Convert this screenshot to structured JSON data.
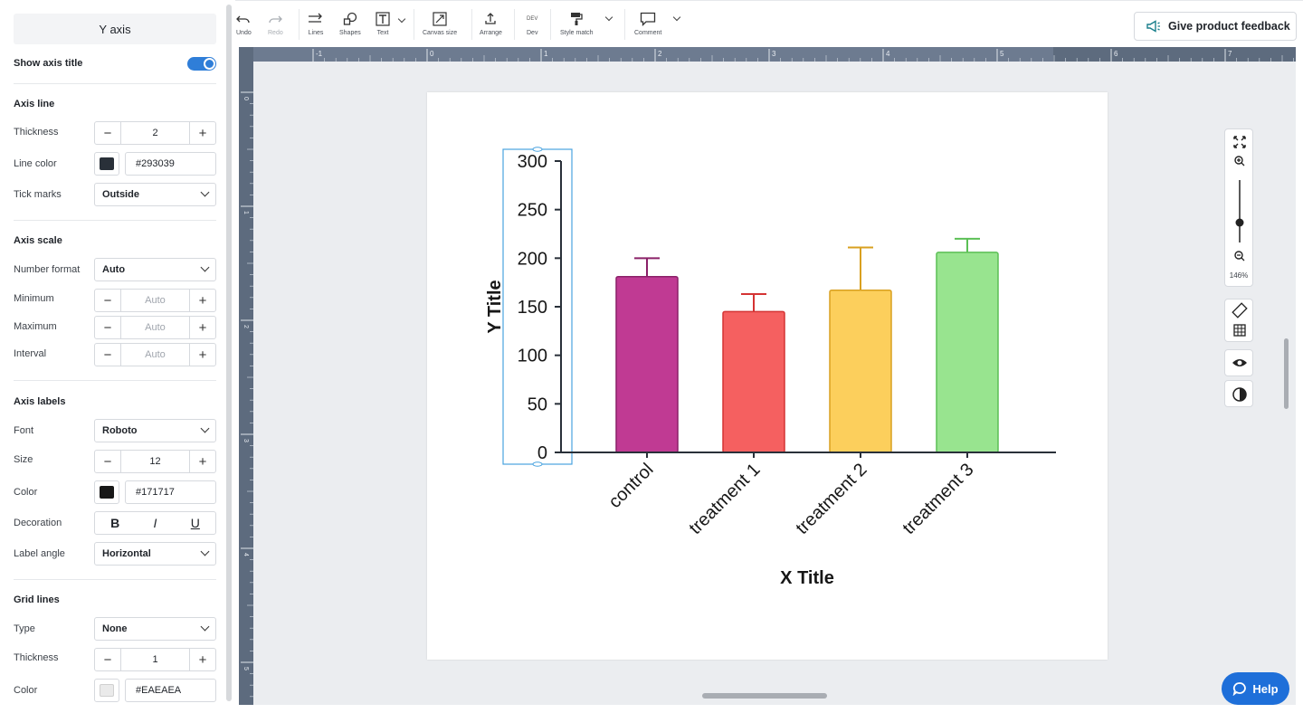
{
  "panel": {
    "header": "Y axis",
    "show_axis_title_label": "Show axis title",
    "axis_line": {
      "title": "Axis line",
      "thickness_label": "Thickness",
      "thickness_value": "2",
      "line_color_label": "Line color",
      "line_color_hex": "#293039",
      "tick_marks_label": "Tick marks",
      "tick_marks_value": "Outside"
    },
    "axis_scale": {
      "title": "Axis scale",
      "number_format_label": "Number format",
      "number_format_value": "Auto",
      "minimum_label": "Minimum",
      "minimum_placeholder": "Auto",
      "maximum_label": "Maximum",
      "maximum_placeholder": "Auto",
      "interval_label": "Interval",
      "interval_placeholder": "Auto"
    },
    "axis_labels": {
      "title": "Axis labels",
      "font_label": "Font",
      "font_value": "Roboto",
      "size_label": "Size",
      "size_value": "12",
      "color_label": "Color",
      "color_hex": "#171717",
      "decoration_label": "Decoration",
      "bold": "B",
      "italic": "I",
      "underline": "U",
      "label_angle_label": "Label angle",
      "label_angle_value": "Horizontal"
    },
    "grid_lines": {
      "title": "Grid lines",
      "type_label": "Type",
      "type_value": "None",
      "thickness_label": "Thickness",
      "thickness_value": "1",
      "color_label": "Color",
      "color_hex": "#EAEAEA"
    },
    "minus": "−",
    "plus": "+"
  },
  "toolbar": {
    "undo": "Undo",
    "redo": "Redo",
    "lines": "Lines",
    "shapes": "Shapes",
    "text": "Text",
    "canvas_size": "Canvas size",
    "arrange": "Arrange",
    "dev": "Dev",
    "dev_badge": "DEV",
    "style_match": "Style match",
    "comment": "Comment",
    "feedback": "Give product feedback"
  },
  "ruler": {
    "top_numbers": [
      "-1",
      "0",
      "1",
      "2",
      "3",
      "4",
      "5",
      "6",
      "7"
    ],
    "left_numbers": [
      "0",
      "1",
      "2",
      "3",
      "4",
      "5"
    ]
  },
  "zoom": {
    "level": "146%"
  },
  "help": "Help",
  "chart_data": {
    "type": "bar",
    "categories": [
      "control",
      "treatment 1",
      "treatment 2",
      "treatment 3"
    ],
    "values": [
      181,
      145,
      167,
      206
    ],
    "error_upper": [
      200,
      163,
      211,
      220
    ],
    "colors": [
      "#c03a93",
      "#f56060",
      "#fccf5c",
      "#98e48f"
    ],
    "edge_colors": [
      "#8a2068",
      "#d43333",
      "#d9a020",
      "#5bbf55"
    ],
    "xlabel": "X Title",
    "ylabel": "Y Title",
    "ylim": [
      0,
      300
    ],
    "yticks": [
      "0",
      "50",
      "100",
      "150",
      "200",
      "250",
      "300"
    ],
    "grid": false,
    "axis_color": "#293039",
    "label_color": "#171717"
  },
  "colors": {
    "accent": "#2f7ed8",
    "help": "#1e6fd9"
  }
}
